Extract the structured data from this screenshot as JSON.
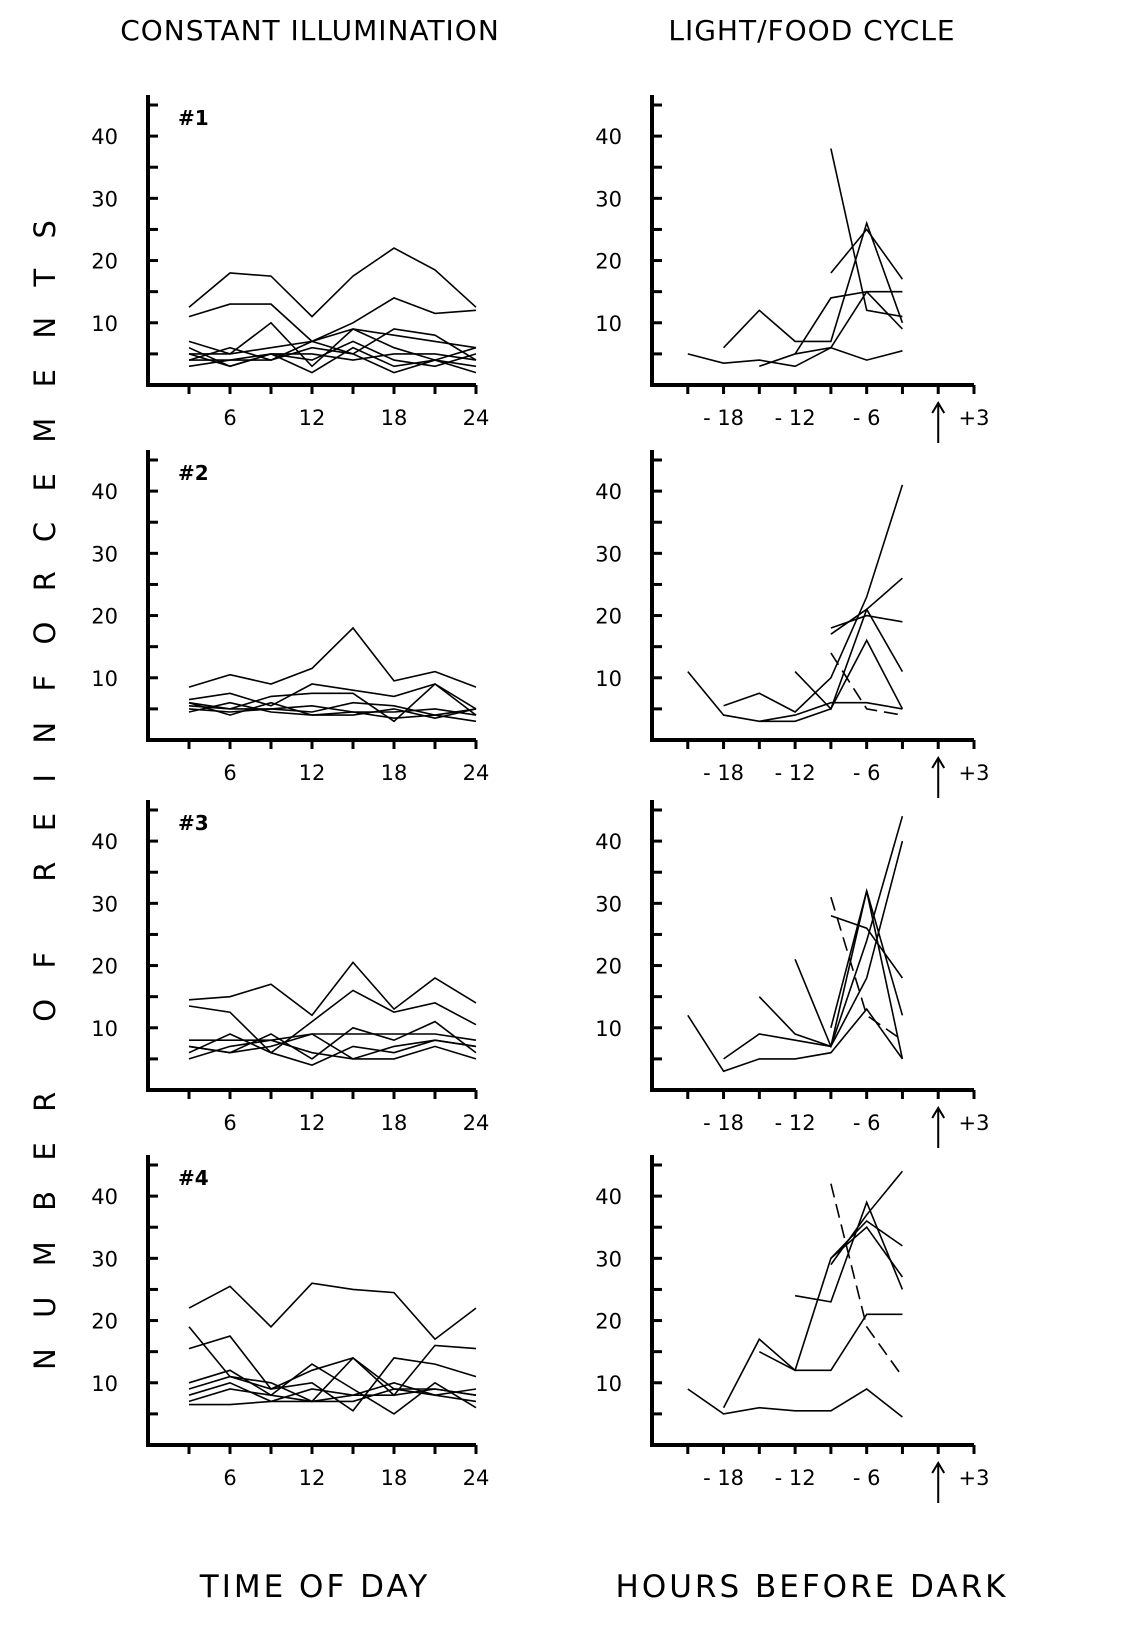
{
  "figure": {
    "left_title": "CONSTANT ILLUMINATION",
    "right_title": "LIGHT/FOOD CYCLE",
    "y_label": "NUMBER OF REINFORCEMENTS",
    "left_xlabel": "TIME OF DAY",
    "right_xlabel": "HOURS BEFORE DARK"
  },
  "chart_data": [
    {
      "type": "line",
      "panel": "#1",
      "condition": "constant illumination",
      "xlabel": "TIME OF DAY",
      "ylabel": "NUMBER OF REINFORCEMENTS",
      "xlim": [
        0,
        24
      ],
      "ylim": [
        0,
        45
      ],
      "xticks": [
        6,
        12,
        18,
        24
      ],
      "yticks": [
        10,
        20,
        30,
        40
      ],
      "grid": false,
      "x": [
        3,
        6,
        9,
        12,
        15,
        18,
        21,
        24
      ],
      "series": [
        {
          "values": [
            12.5,
            18,
            17.5,
            11,
            17.5,
            22,
            18.5,
            12.5
          ]
        },
        {
          "values": [
            11,
            13,
            13,
            7,
            10,
            14,
            11.5,
            12
          ]
        },
        {
          "values": [
            7,
            5,
            10,
            3,
            9,
            8,
            7,
            6
          ]
        },
        {
          "values": [
            5,
            5,
            6,
            7,
            9,
            6,
            4,
            6
          ]
        },
        {
          "values": [
            4,
            6,
            4,
            7,
            5,
            9,
            8,
            4
          ]
        },
        {
          "values": [
            6,
            3,
            5,
            2,
            6,
            3,
            4,
            2
          ]
        },
        {
          "values": [
            4,
            4,
            5,
            5,
            4,
            5,
            5,
            4
          ]
        },
        {
          "values": [
            3,
            4,
            4,
            6,
            5,
            2,
            4,
            3
          ]
        },
        {
          "values": [
            5,
            3,
            5,
            4,
            7,
            4,
            3,
            5
          ]
        }
      ]
    },
    {
      "type": "line",
      "panel": "#1",
      "condition": "light/food cycle",
      "xlabel": "HOURS BEFORE DARK",
      "ylabel": "NUMBER OF REINFORCEMENTS",
      "xlim": [
        -24,
        3
      ],
      "ylim": [
        0,
        45
      ],
      "xticks": [
        -18,
        -12,
        -6,
        3
      ],
      "yticks": [
        10,
        20,
        30,
        40
      ],
      "grid": false,
      "dark_onset_arrow_x": 0,
      "series": [
        {
          "x": [
            -21,
            -18,
            -15,
            -12,
            -9,
            -6,
            -3
          ],
          "values": [
            5,
            3.5,
            4,
            3,
            6,
            4,
            5.5
          ]
        },
        {
          "x": [
            -18,
            -15,
            -12,
            -9,
            -6,
            -3
          ],
          "values": [
            6,
            12,
            7,
            7,
            26,
            10
          ]
        },
        {
          "x": [
            -15,
            -12,
            -9,
            -6,
            -3
          ],
          "values": [
            3,
            5,
            14,
            15,
            9
          ]
        },
        {
          "x": [
            -9,
            -6,
            -3
          ],
          "values": [
            38,
            12,
            11
          ]
        },
        {
          "x": [
            -9,
            -6,
            -3
          ],
          "values": [
            18,
            25,
            17
          ]
        },
        {
          "x": [
            -12,
            -9,
            -6,
            -3
          ],
          "values": [
            5,
            6,
            15,
            15
          ]
        }
      ]
    },
    {
      "type": "line",
      "panel": "#2",
      "condition": "constant illumination",
      "xlabel": "TIME OF DAY",
      "ylabel": "NUMBER OF REINFORCEMENTS",
      "xlim": [
        0,
        24
      ],
      "ylim": [
        0,
        45
      ],
      "xticks": [
        6,
        12,
        18,
        24
      ],
      "yticks": [
        10,
        20,
        30,
        40
      ],
      "grid": false,
      "x": [
        3,
        6,
        9,
        12,
        15,
        18,
        21,
        24
      ],
      "series": [
        {
          "values": [
            8.5,
            10.5,
            9,
            11.5,
            18,
            9.5,
            11,
            8.5
          ]
        },
        {
          "values": [
            6.5,
            7.5,
            5.5,
            9,
            8,
            7,
            9,
            5
          ]
        },
        {
          "values": [
            5.5,
            5,
            7,
            7.5,
            7.5,
            3,
            9,
            4
          ]
        },
        {
          "values": [
            6,
            5,
            5,
            4.5,
            6,
            5.5,
            4,
            3
          ]
        },
        {
          "values": [
            4.5,
            6,
            4.5,
            4,
            4.5,
            3.5,
            4,
            5
          ]
        },
        {
          "values": [
            5,
            4.5,
            5,
            5.5,
            4.5,
            4.5,
            5,
            4
          ]
        },
        {
          "values": [
            6,
            4,
            6,
            4,
            4,
            5,
            3.5,
            5
          ]
        }
      ]
    },
    {
      "type": "line",
      "panel": "#2",
      "condition": "light/food cycle",
      "xlabel": "HOURS BEFORE DARK",
      "ylabel": "NUMBER OF REINFORCEMENTS",
      "xlim": [
        -24,
        3
      ],
      "ylim": [
        0,
        45
      ],
      "xticks": [
        -18,
        -12,
        -6,
        3
      ],
      "yticks": [
        10,
        20,
        30,
        40
      ],
      "grid": false,
      "dark_onset_arrow_x": 0,
      "series": [
        {
          "x": [
            -21,
            -18,
            -15,
            -12,
            -9,
            -6,
            -3
          ],
          "values": [
            11,
            4,
            3,
            4,
            6,
            6,
            5
          ]
        },
        {
          "x": [
            -18,
            -15,
            -12,
            -9,
            -6,
            -3
          ],
          "values": [
            5.5,
            7.5,
            4.5,
            10,
            23,
            41
          ]
        },
        {
          "x": [
            -15,
            -12,
            -9,
            -6,
            -3
          ],
          "values": [
            3,
            3,
            5,
            16,
            5
          ]
        },
        {
          "x": [
            -9,
            -6,
            -3
          ],
          "values": [
            18,
            20,
            19
          ]
        },
        {
          "x": [
            -9,
            -6,
            -3
          ],
          "values": [
            17,
            21,
            11
          ]
        },
        {
          "x": [
            -12,
            -9,
            -6,
            -3
          ],
          "values": [
            11,
            5,
            21,
            26
          ]
        },
        {
          "x": [
            -9,
            -6,
            -3
          ],
          "values": [
            14,
            5,
            4
          ],
          "dashed": true
        }
      ]
    },
    {
      "type": "line",
      "panel": "#3",
      "condition": "constant illumination",
      "xlabel": "TIME OF DAY",
      "ylabel": "NUMBER OF REINFORCEMENTS",
      "xlim": [
        0,
        24
      ],
      "ylim": [
        0,
        45
      ],
      "xticks": [
        6,
        12,
        18,
        24
      ],
      "yticks": [
        10,
        20,
        30,
        40
      ],
      "grid": false,
      "x": [
        3,
        6,
        9,
        12,
        15,
        18,
        21,
        24
      ],
      "series": [
        {
          "values": [
            14.5,
            15,
            17,
            12,
            20.5,
            13,
            18,
            14
          ]
        },
        {
          "values": [
            13.5,
            12.5,
            6,
            11,
            16,
            12.5,
            14,
            10.5
          ]
        },
        {
          "values": [
            8,
            8,
            8,
            9,
            9,
            9,
            9,
            8
          ]
        },
        {
          "values": [
            7,
            6,
            9,
            5,
            10,
            8,
            11,
            6
          ]
        },
        {
          "values": [
            6,
            9,
            6,
            4,
            7,
            6,
            8,
            7
          ]
        },
        {
          "values": [
            5,
            7,
            8,
            6,
            5,
            5,
            7,
            5
          ]
        },
        {
          "values": [
            7,
            6,
            7,
            9,
            5,
            7,
            8,
            7
          ]
        }
      ]
    },
    {
      "type": "line",
      "panel": "#3",
      "condition": "light/food cycle",
      "xlabel": "HOURS BEFORE DARK",
      "ylabel": "NUMBER OF REINFORCEMENTS",
      "xlim": [
        -24,
        3
      ],
      "ylim": [
        0,
        45
      ],
      "xticks": [
        -18,
        -12,
        -6,
        3
      ],
      "yticks": [
        10,
        20,
        30,
        40
      ],
      "grid": false,
      "dark_onset_arrow_x": 0,
      "series": [
        {
          "x": [
            -21,
            -18,
            -15,
            -12,
            -9,
            -6,
            -3
          ],
          "values": [
            12,
            3,
            5,
            5,
            6,
            13,
            5
          ]
        },
        {
          "x": [
            -18,
            -15,
            -12,
            -9,
            -6,
            -3
          ],
          "values": [
            5,
            9,
            8,
            7,
            32,
            5
          ]
        },
        {
          "x": [
            -15,
            -12,
            -9,
            -6,
            -3
          ],
          "values": [
            15,
            9,
            7,
            24,
            44
          ]
        },
        {
          "x": [
            -12,
            -9,
            -6,
            -3
          ],
          "values": [
            21,
            7,
            18,
            40
          ]
        },
        {
          "x": [
            -9,
            -6,
            -3
          ],
          "values": [
            28,
            26,
            18
          ]
        },
        {
          "x": [
            -9,
            -6,
            -3
          ],
          "values": [
            10,
            32,
            12
          ]
        },
        {
          "x": [
            -9,
            -6,
            -3
          ],
          "values": [
            31,
            12,
            8
          ],
          "dashed": true
        }
      ]
    },
    {
      "type": "line",
      "panel": "#4",
      "condition": "constant illumination",
      "xlabel": "TIME OF DAY",
      "ylabel": "NUMBER OF REINFORCEMENTS",
      "xlim": [
        0,
        24
      ],
      "ylim": [
        0,
        45
      ],
      "xticks": [
        6,
        12,
        18,
        24
      ],
      "yticks": [
        10,
        20,
        30,
        40
      ],
      "grid": false,
      "x": [
        3,
        6,
        9,
        12,
        15,
        18,
        21,
        24
      ],
      "series": [
        {
          "values": [
            22,
            25.5,
            19,
            26,
            25,
            24.5,
            17,
            22
          ]
        },
        {
          "values": [
            15.5,
            17.5,
            9,
            12,
            14,
            8,
            16,
            15.5
          ]
        },
        {
          "values": [
            19,
            11,
            9,
            10,
            5.5,
            14,
            13,
            11
          ]
        },
        {
          "values": [
            9,
            11,
            10,
            7,
            14,
            9,
            9,
            8
          ]
        },
        {
          "values": [
            10,
            12,
            8,
            13,
            9,
            5,
            10,
            6
          ]
        },
        {
          "values": [
            8,
            10,
            7,
            9,
            8,
            10,
            8,
            9
          ]
        },
        {
          "values": [
            7,
            9,
            8,
            7,
            7,
            9,
            8,
            7
          ]
        },
        {
          "values": [
            6.5,
            6.5,
            7,
            7,
            8,
            8,
            9,
            8
          ]
        }
      ]
    },
    {
      "type": "line",
      "panel": "#4",
      "condition": "light/food cycle",
      "xlabel": "HOURS BEFORE DARK",
      "ylabel": "NUMBER OF REINFORCEMENTS",
      "xlim": [
        -24,
        3
      ],
      "ylim": [
        0,
        45
      ],
      "xticks": [
        -18,
        -12,
        -6,
        3
      ],
      "yticks": [
        10,
        20,
        30,
        40
      ],
      "grid": false,
      "dark_onset_arrow_x": 0,
      "series": [
        {
          "x": [
            -21,
            -18,
            -15,
            -12,
            -9,
            -6,
            -3
          ],
          "values": [
            9,
            5,
            6,
            5.5,
            5.5,
            9,
            4.5
          ]
        },
        {
          "x": [
            -18,
            -15,
            -12,
            -9,
            -6,
            -3
          ],
          "values": [
            6,
            17,
            12,
            12,
            21,
            21
          ]
        },
        {
          "x": [
            -15,
            -12,
            -9,
            -6,
            -3
          ],
          "values": [
            15,
            12,
            30,
            36,
            32
          ]
        },
        {
          "x": [
            -12,
            -9,
            -6,
            -3
          ],
          "values": [
            24,
            23,
            39,
            25
          ]
        },
        {
          "x": [
            -9,
            -6,
            -3
          ],
          "values": [
            30,
            35,
            27
          ]
        },
        {
          "x": [
            -9,
            -6,
            -3
          ],
          "values": [
            42,
            19,
            11
          ],
          "dashed": true
        },
        {
          "x": [
            -9,
            -6,
            -3
          ],
          "values": [
            29,
            37,
            44
          ]
        }
      ]
    }
  ]
}
